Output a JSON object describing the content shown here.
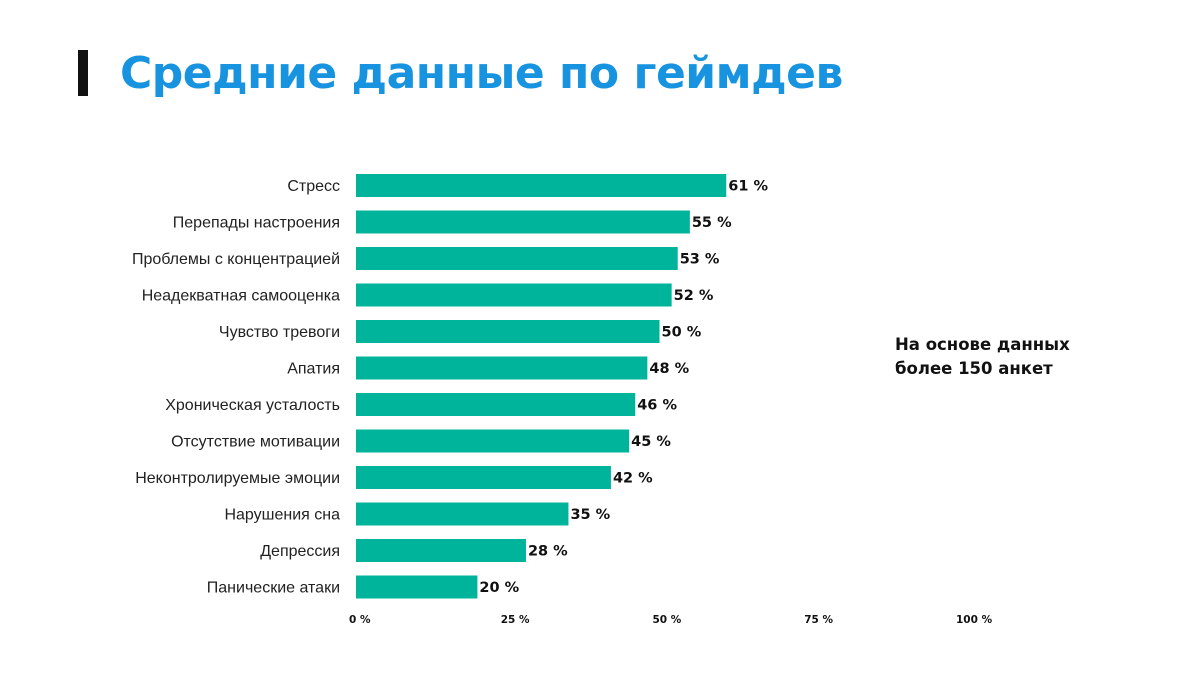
{
  "title": "Средние данные по геймдев",
  "note": {
    "line1": "На основе данных",
    "line2": "более 150 анкет"
  },
  "colors": {
    "title": "#1793e0",
    "bar": "#00b39b",
    "text": "#111111"
  },
  "chart_data": {
    "type": "bar",
    "orientation": "horizontal",
    "title": "Средние данные по геймдев",
    "categories": [
      "Стресс",
      "Перепады настроения",
      "Проблемы с концентрацией",
      "Неадекватная самооценка",
      "Чувство тревоги",
      "Апатия",
      "Хроническая усталость",
      "Отсутствие мотивации",
      "Неконтролируемые эмоции",
      "Нарушения сна",
      "Депрессия",
      "Панические атаки"
    ],
    "values": [
      61,
      55,
      53,
      52,
      50,
      48,
      46,
      45,
      42,
      35,
      28,
      20
    ],
    "value_labels": [
      "61 %",
      "55 %",
      "53 %",
      "52 %",
      "50 %",
      "48 %",
      "46 %",
      "45 %",
      "42 %",
      "35 %",
      "28 %",
      "20 %"
    ],
    "xlim": [
      0,
      100
    ],
    "xticks": [
      0,
      25,
      50,
      75,
      100
    ],
    "xtick_labels": [
      "0 %",
      "25 %",
      "50 %",
      "75 %",
      "100 %"
    ],
    "xlabel": "",
    "ylabel": "",
    "grid": false,
    "legend": "none"
  }
}
